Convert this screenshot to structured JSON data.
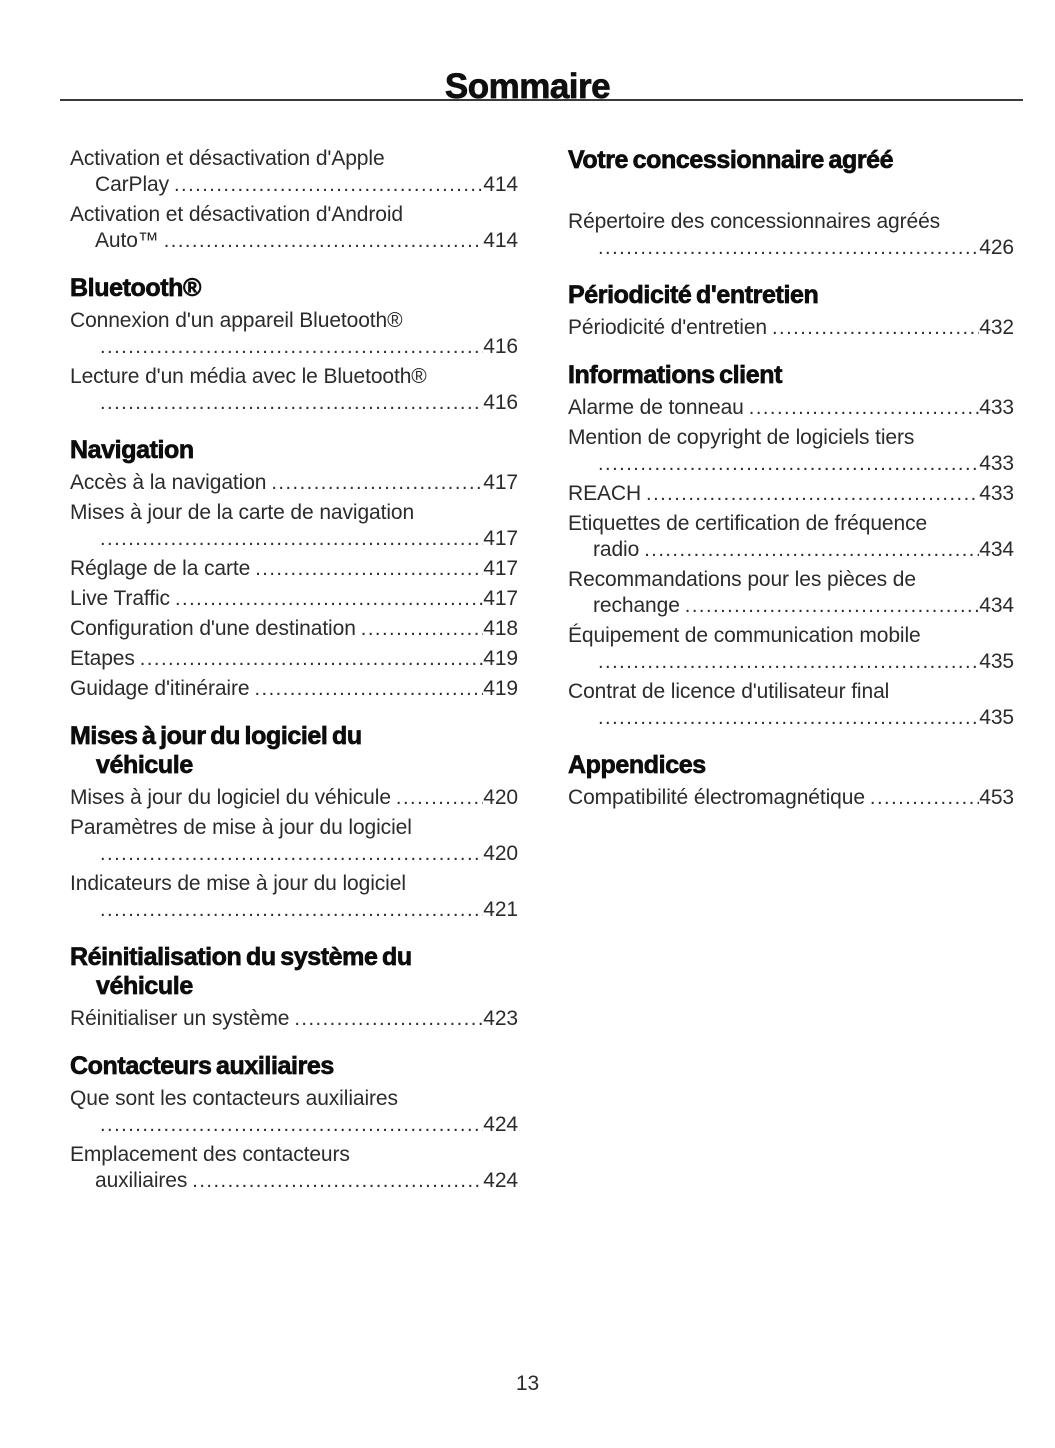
{
  "page": {
    "title": "Sommaire",
    "page_number": "13"
  },
  "columns": [
    {
      "sections": [
        {
          "heading": [],
          "entries": [
            {
              "lines": [
                {
                  "text": "Activation et désactivation d'Apple"
                },
                {
                  "text": "CarPlay",
                  "page": "414",
                  "indent": true
                }
              ]
            },
            {
              "lines": [
                {
                  "text": "Activation et désactivation d'Android"
                },
                {
                  "text": "Auto™",
                  "page": "414",
                  "indent": true
                }
              ]
            }
          ]
        },
        {
          "heading": [
            "Bluetooth®"
          ],
          "entries": [
            {
              "lines": [
                {
                  "text": "Connexion d'un appareil Bluetooth®"
                },
                {
                  "text": "",
                  "page": "416",
                  "indent": true
                }
              ]
            },
            {
              "lines": [
                {
                  "text": "Lecture d'un média avec le Bluetooth®"
                },
                {
                  "text": "",
                  "page": "416",
                  "indent": true
                }
              ]
            }
          ]
        },
        {
          "heading": [
            "Navigation"
          ],
          "entries": [
            {
              "lines": [
                {
                  "text": "Accès à la navigation",
                  "page": "417"
                }
              ]
            },
            {
              "lines": [
                {
                  "text": "Mises à jour de la carte de navigation"
                },
                {
                  "text": "",
                  "page": "417",
                  "indent": true
                }
              ]
            },
            {
              "lines": [
                {
                  "text": "Réglage de la carte",
                  "page": "417"
                }
              ]
            },
            {
              "lines": [
                {
                  "text": "Live Traffic",
                  "page": "417"
                }
              ]
            },
            {
              "lines": [
                {
                  "text": "Configuration d'une destination",
                  "page": "418"
                }
              ]
            },
            {
              "lines": [
                {
                  "text": "Etapes",
                  "page": "419"
                }
              ]
            },
            {
              "lines": [
                {
                  "text": "Guidage d'itinéraire",
                  "page": "419"
                }
              ]
            }
          ]
        },
        {
          "heading": [
            "Mises à jour du logiciel du",
            "véhicule"
          ],
          "entries": [
            {
              "lines": [
                {
                  "text": "Mises à jour du logiciel du véhicule",
                  "page": "420"
                }
              ]
            },
            {
              "lines": [
                {
                  "text": "Paramètres de mise à jour du logiciel"
                },
                {
                  "text": "",
                  "page": "420",
                  "indent": true
                }
              ]
            },
            {
              "lines": [
                {
                  "text": "Indicateurs de mise à jour du logiciel"
                },
                {
                  "text": "",
                  "page": "421",
                  "indent": true
                }
              ]
            }
          ]
        },
        {
          "heading": [
            "Réinitialisation du système du",
            "véhicule"
          ],
          "entries": [
            {
              "lines": [
                {
                  "text": "Réinitialiser un système",
                  "page": "423"
                }
              ]
            }
          ]
        },
        {
          "heading": [
            "Contacteurs auxiliaires"
          ],
          "entries": [
            {
              "lines": [
                {
                  "text": "Que sont les contacteurs auxiliaires"
                },
                {
                  "text": "",
                  "page": "424",
                  "indent": true
                }
              ]
            },
            {
              "lines": [
                {
                  "text": "Emplacement des contacteurs"
                },
                {
                  "text": "auxiliaires",
                  "page": "424",
                  "indent": true
                }
              ]
            }
          ]
        }
      ]
    },
    {
      "sections": [
        {
          "heading": [
            "Votre concessionnaire agréé"
          ],
          "heading_gap": true,
          "entries": [
            {
              "lines": [
                {
                  "text": "Répertoire des concessionnaires agréés"
                },
                {
                  "text": "",
                  "page": "426",
                  "indent": true
                }
              ]
            }
          ]
        },
        {
          "heading": [
            "Périodicité d'entretien"
          ],
          "entries": [
            {
              "lines": [
                {
                  "text": "Périodicité d'entretien",
                  "page": "432"
                }
              ]
            }
          ]
        },
        {
          "heading": [
            "Informations client"
          ],
          "entries": [
            {
              "lines": [
                {
                  "text": "Alarme de tonneau",
                  "page": "433"
                }
              ]
            },
            {
              "lines": [
                {
                  "text": "Mention de copyright de logiciels tiers"
                },
                {
                  "text": "",
                  "page": "433",
                  "indent": true
                }
              ]
            },
            {
              "lines": [
                {
                  "text": "REACH",
                  "page": "433"
                }
              ]
            },
            {
              "lines": [
                {
                  "text": "Etiquettes de certification de fréquence"
                },
                {
                  "text": "radio",
                  "page": "434",
                  "indent": true
                }
              ]
            },
            {
              "lines": [
                {
                  "text": "Recommandations pour les pièces de"
                },
                {
                  "text": "rechange",
                  "page": "434",
                  "indent": true
                }
              ]
            },
            {
              "lines": [
                {
                  "text": "Équipement de communication mobile"
                },
                {
                  "text": "",
                  "page": "435",
                  "indent": true
                }
              ]
            },
            {
              "lines": [
                {
                  "text": "Contrat de licence d'utilisateur final"
                },
                {
                  "text": "",
                  "page": "435",
                  "indent": true
                }
              ]
            }
          ]
        },
        {
          "heading": [
            "Appendices"
          ],
          "entries": [
            {
              "lines": [
                {
                  "text": "Compatibilité électromagnétique",
                  "page": "453"
                }
              ]
            }
          ]
        }
      ]
    }
  ]
}
